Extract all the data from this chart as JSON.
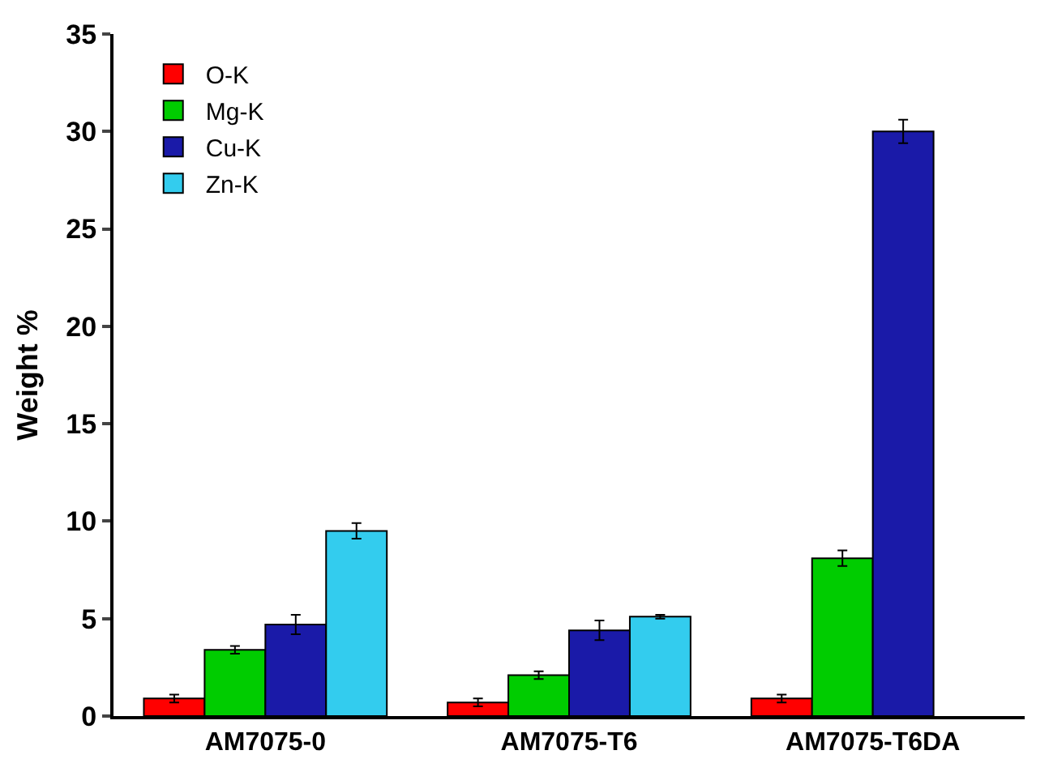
{
  "chart_data": {
    "type": "bar",
    "ylabel": "Weight %",
    "categories": [
      "AM7075-0",
      "AM7075-T6",
      "AM7075-T6DA"
    ],
    "series": [
      {
        "name": "O-K",
        "color": "#ff0000",
        "values": [
          0.9,
          0.7,
          0.9
        ],
        "errors": [
          0.2,
          0.2,
          0.2
        ]
      },
      {
        "name": "Mg-K",
        "color": "#00cc00",
        "values": [
          3.4,
          2.1,
          8.1
        ],
        "errors": [
          0.2,
          0.2,
          0.4
        ]
      },
      {
        "name": "Cu-K",
        "color": "#1a1aa8",
        "values": [
          4.7,
          4.4,
          30.0
        ],
        "errors": [
          0.5,
          0.5,
          0.6
        ]
      },
      {
        "name": "Zn-K",
        "color": "#33ccee",
        "values": [
          9.5,
          5.1,
          null
        ],
        "errors": [
          0.4,
          0.1,
          null
        ]
      }
    ],
    "ylim": [
      0,
      35
    ],
    "yticks": [
      0,
      5,
      10,
      15,
      20,
      25,
      30,
      35
    ],
    "grid": false,
    "legend": "top left"
  }
}
